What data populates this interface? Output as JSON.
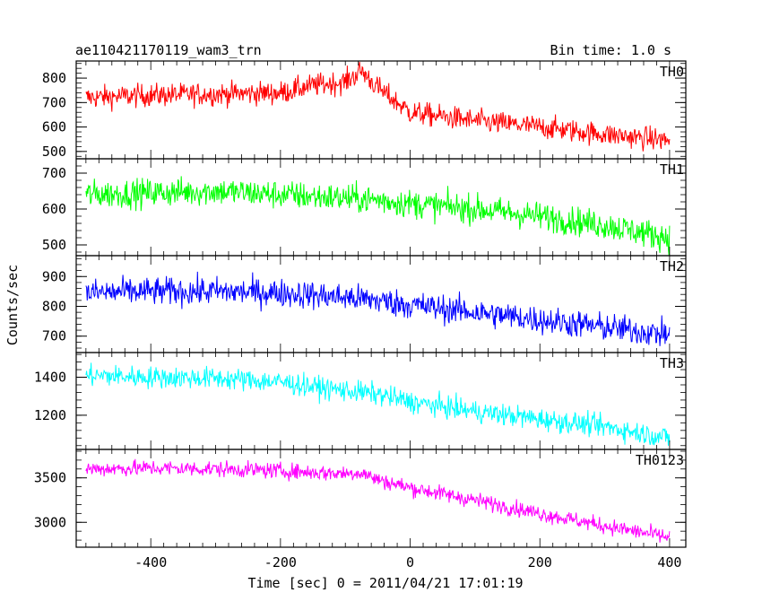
{
  "header": {
    "title": "ae110421170119_wam3_trn",
    "bin_time": "Bin time: 1.0 s"
  },
  "chart_data": {
    "type": "line",
    "xlabel": "Time [sec] 0 = 2011/04/21 17:01:19",
    "ylabel": "Counts/sec",
    "xlim": [
      -515,
      425
    ],
    "xticks": [
      -400,
      -200,
      0,
      200,
      400
    ],
    "x": [
      -500,
      -400,
      -300,
      -200,
      -150,
      -100,
      -75,
      -50,
      0,
      100,
      200,
      300,
      400
    ],
    "panels": [
      {
        "name": "TH0",
        "color": "#ff0000",
        "ylim": [
          470,
          870
        ],
        "yticks": [
          500,
          600,
          700,
          800
        ],
        "values": [
          720,
          730,
          735,
          740,
          770,
          785,
          830,
          760,
          660,
          625,
          600,
          570,
          545
        ],
        "noise": 45
      },
      {
        "name": "TH1",
        "color": "#00ff00",
        "ylim": [
          470,
          740
        ],
        "yticks": [
          500,
          600,
          700
        ],
        "values": [
          640,
          645,
          650,
          640,
          635,
          630,
          628,
          625,
          615,
          600,
          580,
          555,
          520
        ],
        "noise": 38
      },
      {
        "name": "TH2",
        "color": "#0000ff",
        "ylim": [
          645,
          970
        ],
        "yticks": [
          700,
          800,
          900
        ],
        "values": [
          845,
          850,
          850,
          845,
          838,
          830,
          825,
          820,
          805,
          780,
          755,
          730,
          705
        ],
        "noise": 45
      },
      {
        "name": "TH3",
        "color": "#00ffff",
        "ylim": [
          1020,
          1530
        ],
        "yticks": [
          1200,
          1400
        ],
        "values": [
          1410,
          1400,
          1395,
          1375,
          1350,
          1330,
          1320,
          1310,
          1270,
          1220,
          1180,
          1140,
          1080
        ],
        "noise": 55
      },
      {
        "name": "TH0123",
        "color": "#ff00ff",
        "ylim": [
          2720,
          3820
        ],
        "yticks": [
          3000,
          3500
        ],
        "values": [
          3600,
          3610,
          3600,
          3580,
          3560,
          3550,
          3560,
          3480,
          3390,
          3250,
          3100,
          2960,
          2830
        ],
        "noise": 85
      }
    ]
  }
}
